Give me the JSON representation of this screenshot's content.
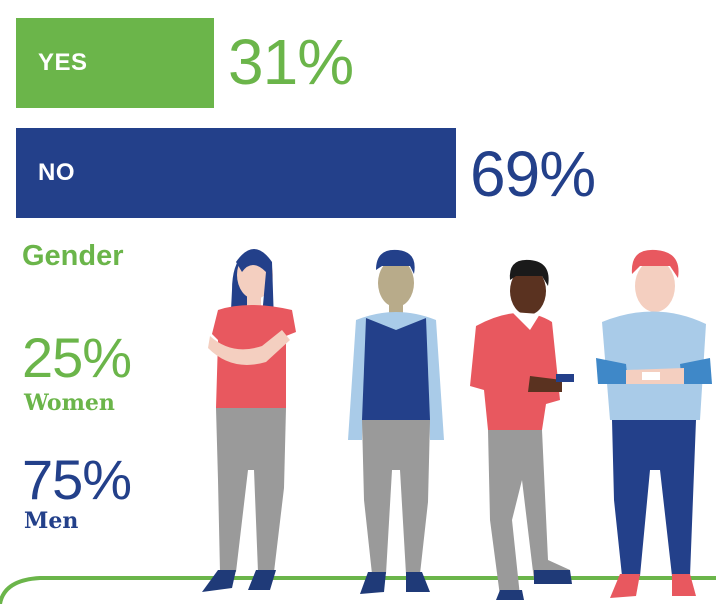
{
  "chart_data": {
    "type": "bar",
    "orientation": "horizontal",
    "categories": [
      "YES",
      "NO"
    ],
    "values": [
      31,
      69
    ],
    "value_labels": [
      "31%",
      "69%"
    ],
    "colors": [
      "#6bb54a",
      "#23408a"
    ],
    "xlim": [
      0,
      100
    ]
  },
  "gender": {
    "heading": "Gender",
    "women": {
      "percent": "25%",
      "label": "Women",
      "color": "#6bb54a"
    },
    "men": {
      "percent": "75%",
      "label": "Men",
      "color": "#23408a"
    }
  },
  "illustration": {
    "figures": [
      "woman-figure",
      "man-vest-figure",
      "man-phone-figure",
      "man-redhair-figure"
    ]
  }
}
